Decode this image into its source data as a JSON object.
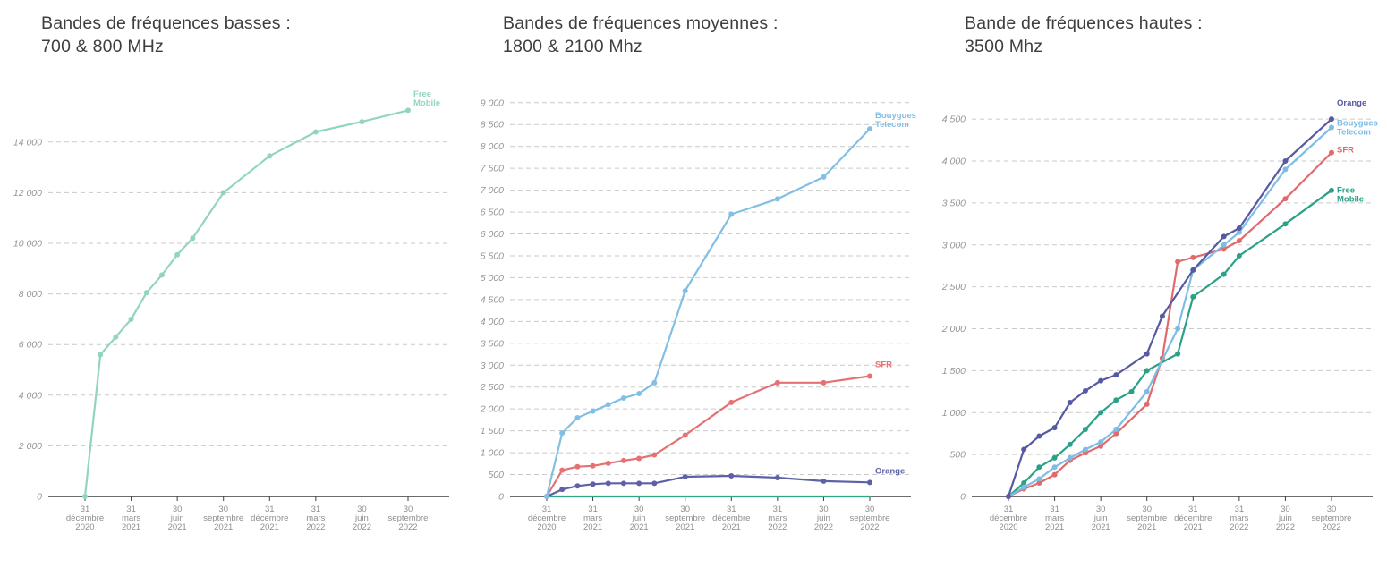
{
  "chart_data": [
    {
      "type": "line",
      "title_lines": [
        "Bandes de fréquences basses :",
        "700 & 800 MHz"
      ],
      "x_min": 0,
      "x_max": 21,
      "y_max": 15900,
      "grid": "dashed-horizontal",
      "legend_position": "line-end-labels",
      "y_ticks": [
        0,
        2000,
        4000,
        6000,
        8000,
        10000,
        12000,
        14000
      ],
      "y_tick_labels": [
        "0",
        "2 000",
        "4 000",
        "6 000",
        "8 000",
        "10 000",
        "12 000",
        "14 000"
      ],
      "x_ticks": [
        {
          "m": 0,
          "lines": [
            "31",
            "décembre",
            "2020"
          ]
        },
        {
          "m": 3,
          "lines": [
            "31",
            "mars",
            "2021"
          ]
        },
        {
          "m": 6,
          "lines": [
            "30",
            "juin",
            "2021"
          ]
        },
        {
          "m": 9,
          "lines": [
            "30",
            "septembre",
            "2021"
          ]
        },
        {
          "m": 12,
          "lines": [
            "31",
            "décembre",
            "2021"
          ]
        },
        {
          "m": 15,
          "lines": [
            "31",
            "mars",
            "2022"
          ]
        },
        {
          "m": 18,
          "lines": [
            "30",
            "juin",
            "2022"
          ]
        },
        {
          "m": 21,
          "lines": [
            "30",
            "septembre",
            "2022"
          ]
        }
      ],
      "series": [
        {
          "name": "Free Mobile",
          "color": "#92d5bf",
          "dots": true,
          "label_lines": [
            "Free",
            "Mobile"
          ],
          "label_y": 15800,
          "points": [
            [
              0,
              0
            ],
            [
              1,
              5600
            ],
            [
              2,
              6300
            ],
            [
              3,
              7000
            ],
            [
              4,
              8050
            ],
            [
              5,
              8750
            ],
            [
              6,
              9550
            ],
            [
              7,
              10200
            ],
            [
              9,
              12000
            ],
            [
              12,
              13450
            ],
            [
              15,
              14400
            ],
            [
              18,
              14800
            ],
            [
              21,
              15250
            ]
          ]
        }
      ]
    },
    {
      "type": "line",
      "title_lines": [
        "Bandes de fréquences moyennes :",
        "1800 & 2100 Mhz"
      ],
      "x_min": 0,
      "x_max": 21,
      "y_max": 9200,
      "grid": "dashed-horizontal",
      "legend_position": "line-end-labels",
      "y_ticks": [
        0,
        500,
        1000,
        1500,
        2000,
        2500,
        3000,
        3500,
        4000,
        4500,
        5000,
        5500,
        6000,
        6500,
        7000,
        7500,
        8000,
        8500,
        9000
      ],
      "y_tick_labels": [
        "0",
        "500",
        "1 000",
        "1 500",
        "2 000",
        "2 500",
        "3 000",
        "3 500",
        "4 000",
        "4 500",
        "5 000",
        "5 500",
        "6 000",
        "6 500",
        "7 000",
        "7 500",
        "8 000",
        "8 500",
        "9 000"
      ],
      "x_ticks": [
        {
          "m": 0,
          "lines": [
            "31",
            "décembre",
            "2020"
          ]
        },
        {
          "m": 3,
          "lines": [
            "31",
            "mars",
            "2021"
          ]
        },
        {
          "m": 6,
          "lines": [
            "30",
            "juin",
            "2021"
          ]
        },
        {
          "m": 9,
          "lines": [
            "30",
            "septembre",
            "2021"
          ]
        },
        {
          "m": 12,
          "lines": [
            "31",
            "décembre",
            "2021"
          ]
        },
        {
          "m": 15,
          "lines": [
            "31",
            "mars",
            "2022"
          ]
        },
        {
          "m": 18,
          "lines": [
            "30",
            "juin",
            "2022"
          ]
        },
        {
          "m": 21,
          "lines": [
            "30",
            "septembre",
            "2022"
          ]
        }
      ],
      "series": [
        {
          "name": "Free Mobile",
          "color": "#2ea886",
          "dots": false,
          "points": [
            [
              0,
              0
            ],
            [
              21,
              0
            ]
          ]
        },
        {
          "name": "Orange",
          "color": "#5d61a8",
          "dots": true,
          "label_lines": [
            "Orange"
          ],
          "label_y": 520,
          "points": [
            [
              0,
              0
            ],
            [
              1,
              160
            ],
            [
              2,
              240
            ],
            [
              3,
              280
            ],
            [
              4,
              300
            ],
            [
              5,
              300
            ],
            [
              6,
              300
            ],
            [
              7,
              300
            ],
            [
              9,
              450
            ],
            [
              12,
              470
            ],
            [
              15,
              430
            ],
            [
              18,
              350
            ],
            [
              21,
              320
            ]
          ]
        },
        {
          "name": "SFR",
          "color": "#e57173",
          "dots": true,
          "label_lines": [
            "SFR"
          ],
          "label_y": 2950,
          "points": [
            [
              0,
              0
            ],
            [
              1,
              600
            ],
            [
              2,
              680
            ],
            [
              3,
              700
            ],
            [
              4,
              760
            ],
            [
              5,
              820
            ],
            [
              6,
              870
            ],
            [
              7,
              950
            ],
            [
              9,
              1400
            ],
            [
              12,
              2150
            ],
            [
              15,
              2600
            ],
            [
              18,
              2600
            ],
            [
              21,
              2750
            ]
          ]
        },
        {
          "name": "Bouygues Telecom",
          "color": "#82bfe4",
          "dots": true,
          "label_lines": [
            "Bouygues",
            "Telecom"
          ],
          "label_y": 8650,
          "points": [
            [
              0,
              0
            ],
            [
              1,
              1450
            ],
            [
              2,
              1800
            ],
            [
              3,
              1950
            ],
            [
              4,
              2100
            ],
            [
              5,
              2250
            ],
            [
              6,
              2350
            ],
            [
              7,
              2600
            ],
            [
              9,
              4700
            ],
            [
              12,
              6450
            ],
            [
              15,
              6800
            ],
            [
              18,
              7300
            ],
            [
              21,
              8400
            ]
          ]
        }
      ]
    },
    {
      "type": "line",
      "title_lines": [
        "Bande de fréquences hautes :",
        "3500 Mhz"
      ],
      "x_min": 0,
      "x_max": 21,
      "y_max": 4800,
      "grid": "dashed-horizontal",
      "legend_position": "line-end-labels",
      "y_ticks": [
        0,
        500,
        1000,
        1500,
        2000,
        2500,
        3000,
        3500,
        4000,
        4500
      ],
      "y_tick_labels": [
        "0",
        "500",
        "1 000",
        "1 500",
        "2 000",
        "2 500",
        "3 000",
        "3 500",
        "4 000",
        "4 500"
      ],
      "x_ticks": [
        {
          "m": 0,
          "lines": [
            "31",
            "décembre",
            "2020"
          ]
        },
        {
          "m": 3,
          "lines": [
            "31",
            "mars",
            "2021"
          ]
        },
        {
          "m": 6,
          "lines": [
            "30",
            "juin",
            "2021"
          ]
        },
        {
          "m": 9,
          "lines": [
            "30",
            "septembre",
            "2021"
          ]
        },
        {
          "m": 12,
          "lines": [
            "31",
            "décembre",
            "2021"
          ]
        },
        {
          "m": 15,
          "lines": [
            "31",
            "mars",
            "2022"
          ]
        },
        {
          "m": 18,
          "lines": [
            "30",
            "juin",
            "2022"
          ]
        },
        {
          "m": 21,
          "lines": [
            "30",
            "septembre",
            "2022"
          ]
        }
      ],
      "series": [
        {
          "name": "Free Mobile",
          "color": "#2aa186",
          "dots": true,
          "label_lines": [
            "Free",
            "Mobile"
          ],
          "label_y": 3620,
          "points": [
            [
              0,
              0
            ],
            [
              1,
              160
            ],
            [
              2,
              350
            ],
            [
              3,
              460
            ],
            [
              4,
              620
            ],
            [
              5,
              800
            ],
            [
              6,
              1000
            ],
            [
              7,
              1150
            ],
            [
              8,
              1250
            ],
            [
              9,
              1500
            ],
            [
              11,
              1700
            ],
            [
              12,
              2380
            ],
            [
              14,
              2650
            ],
            [
              15,
              2870
            ],
            [
              18,
              3250
            ],
            [
              21,
              3650
            ]
          ]
        },
        {
          "name": "SFR",
          "color": "#e06a6c",
          "dots": true,
          "label_lines": [
            "SFR"
          ],
          "label_y": 4100,
          "points": [
            [
              0,
              0
            ],
            [
              1,
              90
            ],
            [
              2,
              160
            ],
            [
              3,
              260
            ],
            [
              4,
              430
            ],
            [
              5,
              520
            ],
            [
              6,
              600
            ],
            [
              7,
              750
            ],
            [
              9,
              1100
            ],
            [
              10,
              1650
            ],
            [
              11,
              2800
            ],
            [
              12,
              2850
            ],
            [
              14,
              2950
            ],
            [
              15,
              3050
            ],
            [
              18,
              3550
            ],
            [
              21,
              4100
            ]
          ]
        },
        {
          "name": "Bouygues Telecom",
          "color": "#7dbde4",
          "dots": true,
          "label_lines": [
            "Bouygues",
            "Telecom"
          ],
          "label_y": 4420,
          "points": [
            [
              0,
              0
            ],
            [
              1,
              110
            ],
            [
              2,
              210
            ],
            [
              3,
              350
            ],
            [
              4,
              460
            ],
            [
              5,
              560
            ],
            [
              6,
              650
            ],
            [
              7,
              800
            ],
            [
              9,
              1250
            ],
            [
              11,
              2000
            ],
            [
              12,
              2700
            ],
            [
              14,
              3000
            ],
            [
              15,
              3150
            ],
            [
              18,
              3900
            ],
            [
              21,
              4400
            ]
          ]
        },
        {
          "name": "Orange",
          "color": "#575aa3",
          "dots": true,
          "label_lines": [
            "Orange"
          ],
          "label_y": 4660,
          "points": [
            [
              0,
              0
            ],
            [
              1,
              560
            ],
            [
              2,
              720
            ],
            [
              3,
              820
            ],
            [
              4,
              1120
            ],
            [
              5,
              1260
            ],
            [
              6,
              1380
            ],
            [
              7,
              1450
            ],
            [
              9,
              1700
            ],
            [
              10,
              2150
            ],
            [
              12,
              2700
            ],
            [
              14,
              3100
            ],
            [
              15,
              3200
            ],
            [
              18,
              4000
            ],
            [
              21,
              4500
            ]
          ]
        }
      ]
    }
  ]
}
